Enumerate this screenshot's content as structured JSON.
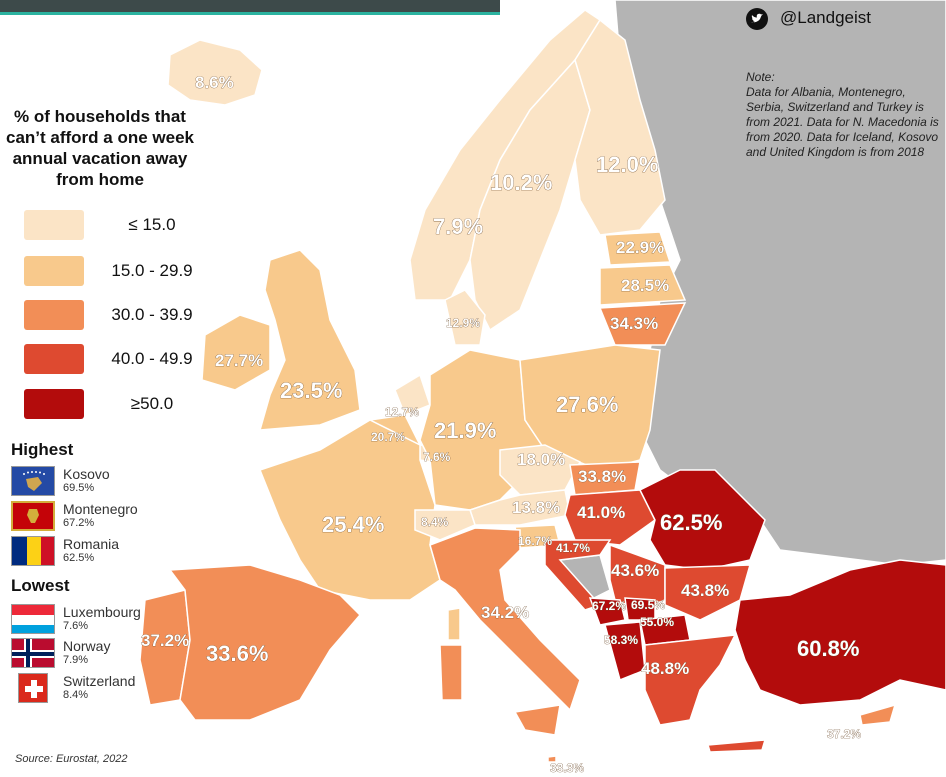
{
  "title": "% of households that can’t afford a one week annual vacation away from home",
  "legend": [
    {
      "label": "≤ 15.0",
      "color": "#fbe4c6"
    },
    {
      "label": "15.0 - 29.9",
      "color": "#f8c98c"
    },
    {
      "label": "30.0 - 39.9",
      "color": "#f28e57"
    },
    {
      "label": "40.0 - 49.9",
      "color": "#de4a30"
    },
    {
      "label": "≥50.0",
      "color": "#b30c0c"
    }
  ],
  "highest_label": "Highest",
  "highest": [
    {
      "name": "Kosovo",
      "value": "69.5%",
      "flag": "kosovo-flag"
    },
    {
      "name": "Montenegro",
      "value": "67.2%",
      "flag": "montenegro-flag"
    },
    {
      "name": "Romania",
      "value": "62.5%",
      "flag": "romania-flag"
    }
  ],
  "lowest_label": "Lowest",
  "lowest": [
    {
      "name": "Luxembourg",
      "value": "7.6%",
      "flag": "luxembourg-flag"
    },
    {
      "name": "Norway",
      "value": "7.9%",
      "flag": "norway-flag"
    },
    {
      "name": "Switzerland",
      "value": "8.4%",
      "flag": "switzerland-flag"
    }
  ],
  "note": "Note:\nData for Albania, Montenegro, Serbia, Switzerland and Turkey is from 2021. Data for N. Macedonia is from 2020. Data for Iceland, Kosovo and United Kingdom is from 2018",
  "handle": "@Landgeist",
  "source": "Source: Eurostat, 2022",
  "colors": {
    "sea": "#ffffff",
    "non_eu": "#b4b4b4",
    "border": "#ffffff"
  },
  "map_labels": {
    "iceland": "8.6%",
    "norway": "7.9%",
    "sweden": "10.2%",
    "finland": "12.0%",
    "estonia": "22.9%",
    "latvia": "28.5%",
    "lithuania": "34.3%",
    "denmark": "12.9%",
    "ireland": "27.7%",
    "uk": "23.5%",
    "netherlands": "12.7%",
    "belgium": "20.7%",
    "luxembourg": "7.6%",
    "germany": "21.9%",
    "poland": "27.6%",
    "czechia": "18.0%",
    "slovakia": "33.8%",
    "austria": "13.8%",
    "hungary": "41.0%",
    "romania": "62.5%",
    "france": "25.4%",
    "switzerland": "8.4%",
    "slovenia": "16.7%",
    "croatia": "41.7%",
    "serbia": "43.6%",
    "bulgaria": "43.8%",
    "montenegro": "67.2%",
    "kosovo": "69.5%",
    "n_macedonia": "55.0%",
    "albania": "58.3%",
    "greece": "48.8%",
    "turkey": "60.8%",
    "italy": "34.2%",
    "spain": "33.6%",
    "portugal": "37.2%",
    "cyprus": "37.2%",
    "malta": "33.3%"
  }
}
